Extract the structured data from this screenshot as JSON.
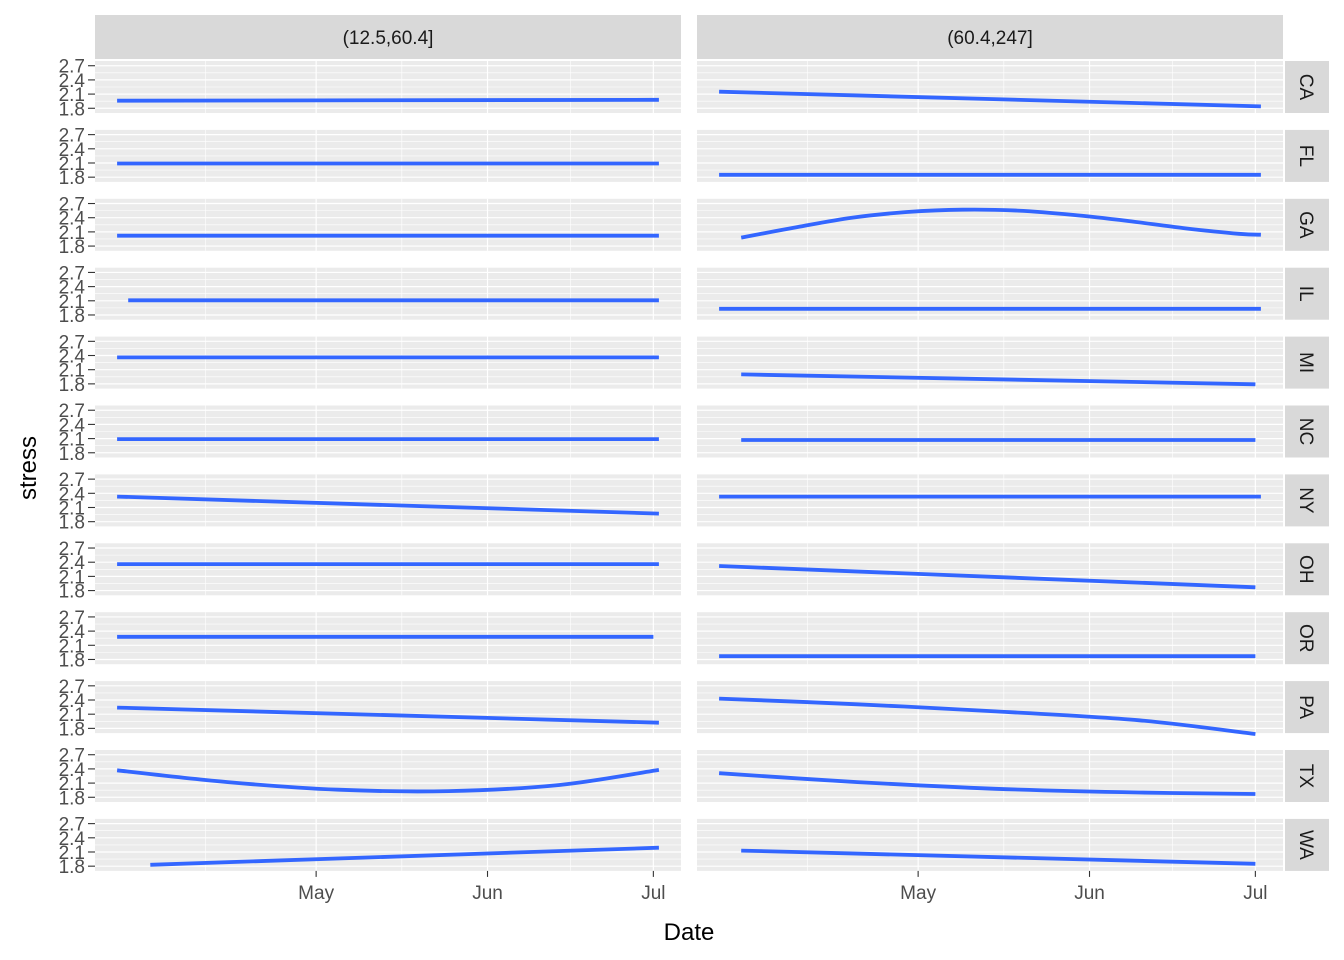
{
  "chart_data": {
    "type": "line",
    "xlabel": "Date",
    "ylabel": "stress",
    "x_ticks": [
      "May",
      "Jun",
      "Jul"
    ],
    "x_tick_dates": [
      "2020-05-01",
      "2020-06-01",
      "2020-07-01"
    ],
    "xlim": [
      "2020-03-22",
      "2020-07-06"
    ],
    "y_ticks": [
      "1.8",
      "2.1",
      "2.4",
      "2.7"
    ],
    "ylim": [
      1.7,
      2.8
    ],
    "columns": [
      "(12.5,60.4]",
      "(60.4,247]"
    ],
    "rows": [
      "CA",
      "FL",
      "GA",
      "IL",
      "MI",
      "NC",
      "NY",
      "OH",
      "OR",
      "PA",
      "TX",
      "WA"
    ],
    "grid": true,
    "colors": {
      "line": "#3366FF",
      "panel_background": "#EBEBEB",
      "grid": "#FFFFFF",
      "strip_background": "#D9D9D9"
    },
    "series": [
      {
        "column": "(12.5,60.4]",
        "row": "CA",
        "x": [
          "2020-03-26",
          "2020-07-02"
        ],
        "y": [
          1.96,
          1.98
        ]
      },
      {
        "column": "(60.4,247]",
        "row": "CA",
        "x": [
          "2020-03-26",
          "2020-07-02"
        ],
        "y": [
          2.15,
          1.84
        ]
      },
      {
        "column": "(12.5,60.4]",
        "row": "FL",
        "x": [
          "2020-03-26",
          "2020-07-02"
        ],
        "y": [
          2.09,
          2.09
        ]
      },
      {
        "column": "(60.4,247]",
        "row": "FL",
        "x": [
          "2020-03-26",
          "2020-07-02"
        ],
        "y": [
          1.85,
          1.85
        ]
      },
      {
        "column": "(12.5,60.4]",
        "row": "GA",
        "x": [
          "2020-03-26",
          "2020-07-02"
        ],
        "y": [
          2.02,
          2.02
        ]
      },
      {
        "column": "(60.4,247]",
        "row": "GA",
        "x": [
          "2020-03-30",
          "2020-04-09",
          "2020-04-19",
          "2020-04-29",
          "2020-05-09",
          "2020-05-19",
          "2020-05-29",
          "2020-06-08",
          "2020-06-18",
          "2020-06-28",
          "2020-07-02"
        ],
        "y": [
          1.98,
          2.2,
          2.4,
          2.52,
          2.57,
          2.55,
          2.46,
          2.33,
          2.18,
          2.06,
          2.04
        ]
      },
      {
        "column": "(12.5,60.4]",
        "row": "IL",
        "x": [
          "2020-03-28",
          "2020-07-02"
        ],
        "y": [
          2.11,
          2.11
        ]
      },
      {
        "column": "(60.4,247]",
        "row": "IL",
        "x": [
          "2020-03-26",
          "2020-07-02"
        ],
        "y": [
          1.93,
          1.93
        ]
      },
      {
        "column": "(12.5,60.4]",
        "row": "MI",
        "x": [
          "2020-03-26",
          "2020-07-02"
        ],
        "y": [
          2.36,
          2.36
        ]
      },
      {
        "column": "(60.4,247]",
        "row": "MI",
        "x": [
          "2020-03-30",
          "2020-07-01"
        ],
        "y": [
          2.0,
          1.79
        ]
      },
      {
        "column": "(12.5,60.4]",
        "row": "NC",
        "x": [
          "2020-03-26",
          "2020-07-02"
        ],
        "y": [
          2.09,
          2.09
        ]
      },
      {
        "column": "(60.4,247]",
        "row": "NC",
        "x": [
          "2020-03-30",
          "2020-07-01"
        ],
        "y": [
          2.07,
          2.07
        ]
      },
      {
        "column": "(12.5,60.4]",
        "row": "NY",
        "x": [
          "2020-03-26",
          "2020-07-02"
        ],
        "y": [
          2.33,
          1.97
        ]
      },
      {
        "column": "(60.4,247]",
        "row": "NY",
        "x": [
          "2020-03-26",
          "2020-07-02"
        ],
        "y": [
          2.33,
          2.33
        ]
      },
      {
        "column": "(12.5,60.4]",
        "row": "OH",
        "x": [
          "2020-03-26",
          "2020-07-02"
        ],
        "y": [
          2.36,
          2.36
        ]
      },
      {
        "column": "(60.4,247]",
        "row": "OH",
        "x": [
          "2020-03-26",
          "2020-07-01"
        ],
        "y": [
          2.32,
          1.87
        ]
      },
      {
        "column": "(12.5,60.4]",
        "row": "OR",
        "x": [
          "2020-03-26",
          "2020-07-01"
        ],
        "y": [
          2.28,
          2.28
        ]
      },
      {
        "column": "(60.4,247]",
        "row": "OR",
        "x": [
          "2020-03-26",
          "2020-07-01"
        ],
        "y": [
          1.87,
          1.87
        ]
      },
      {
        "column": "(12.5,60.4]",
        "row": "PA",
        "x": [
          "2020-03-26",
          "2020-07-02"
        ],
        "y": [
          2.24,
          1.92
        ]
      },
      {
        "column": "(60.4,247]",
        "row": "PA",
        "x": [
          "2020-03-26",
          "2020-04-20",
          "2020-05-15",
          "2020-06-10",
          "2020-07-01"
        ],
        "y": [
          2.43,
          2.31,
          2.16,
          1.97,
          1.68
        ]
      },
      {
        "column": "(12.5,60.4]",
        "row": "TX",
        "x": [
          "2020-03-26",
          "2020-04-15",
          "2020-05-05",
          "2020-05-25",
          "2020-06-14",
          "2020-07-02"
        ],
        "y": [
          2.37,
          2.12,
          1.96,
          1.93,
          2.06,
          2.38
        ]
      },
      {
        "column": "(60.4,247]",
        "row": "TX",
        "x": [
          "2020-03-26",
          "2020-04-20",
          "2020-05-15",
          "2020-06-10",
          "2020-07-01"
        ],
        "y": [
          2.31,
          2.12,
          1.98,
          1.9,
          1.87
        ]
      },
      {
        "column": "(12.5,60.4]",
        "row": "WA",
        "x": [
          "2020-04-01",
          "2020-07-02"
        ],
        "y": [
          1.83,
          2.19
        ]
      },
      {
        "column": "(60.4,247]",
        "row": "WA",
        "x": [
          "2020-03-30",
          "2020-07-01"
        ],
        "y": [
          2.13,
          1.85
        ]
      }
    ]
  }
}
